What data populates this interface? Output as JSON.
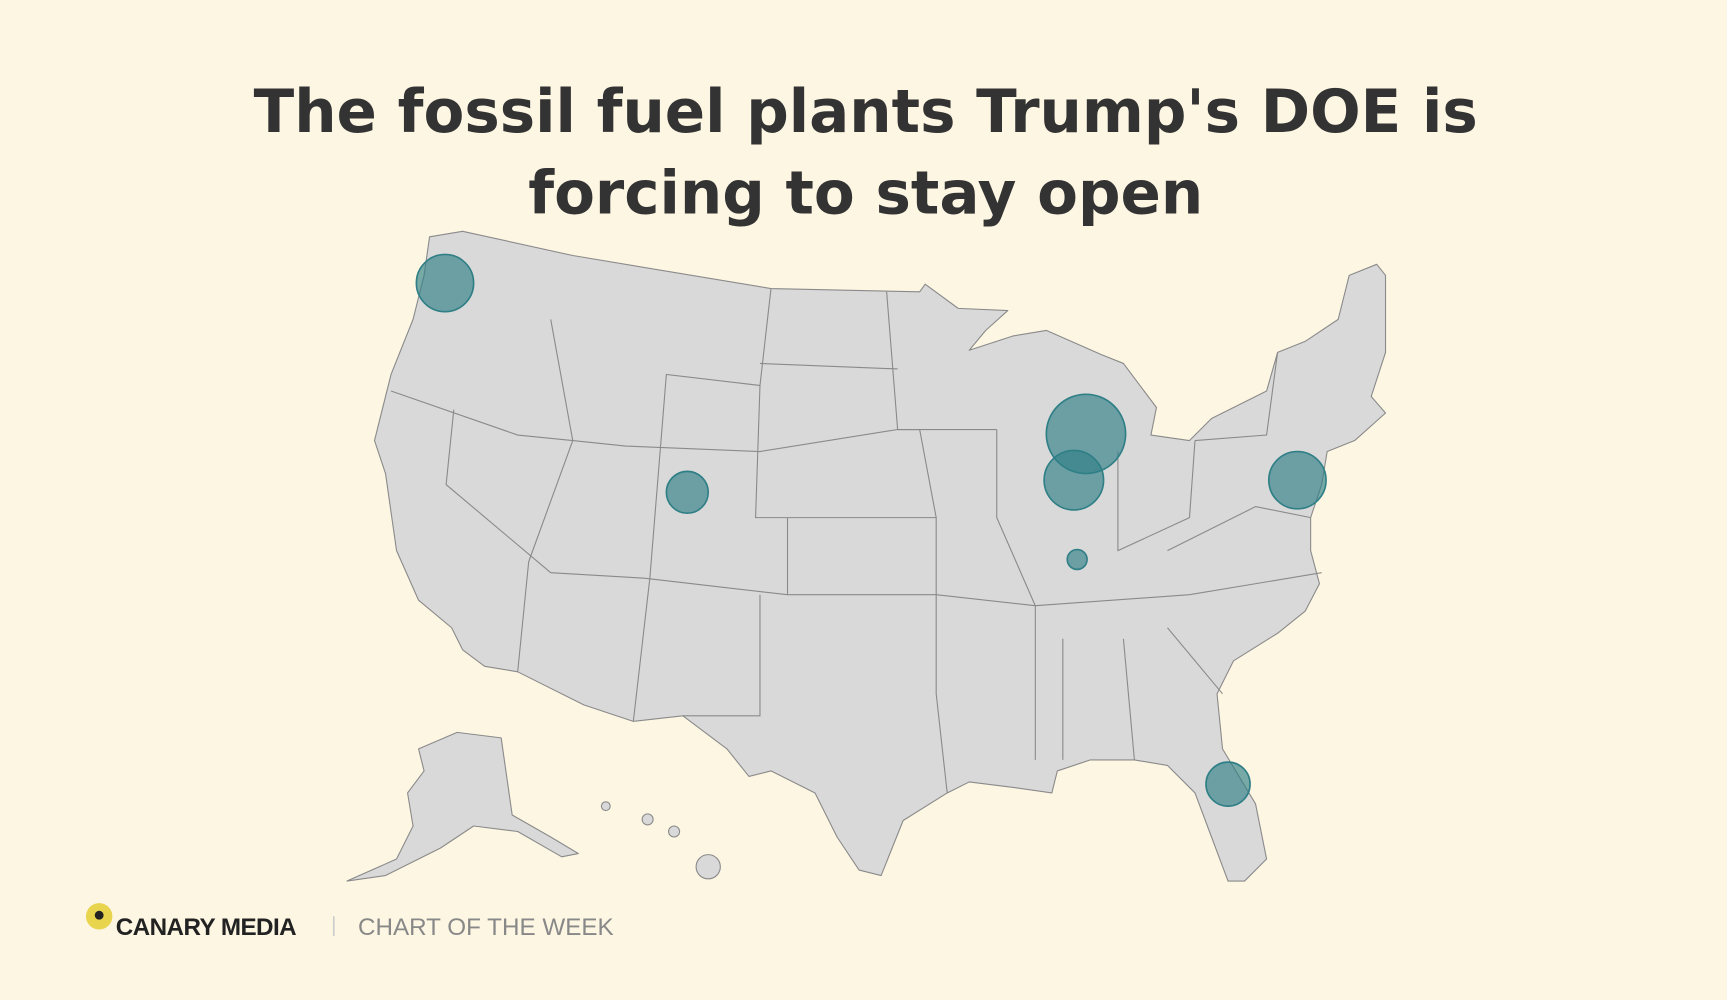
{
  "header": {
    "title_lines": [
      "The fossil fuel plants Trump's DOE is",
      "forcing to stay open"
    ]
  },
  "footer": {
    "brand": "CANARY MEDIA",
    "tagline": "CHART OF THE WEEK"
  }
}
